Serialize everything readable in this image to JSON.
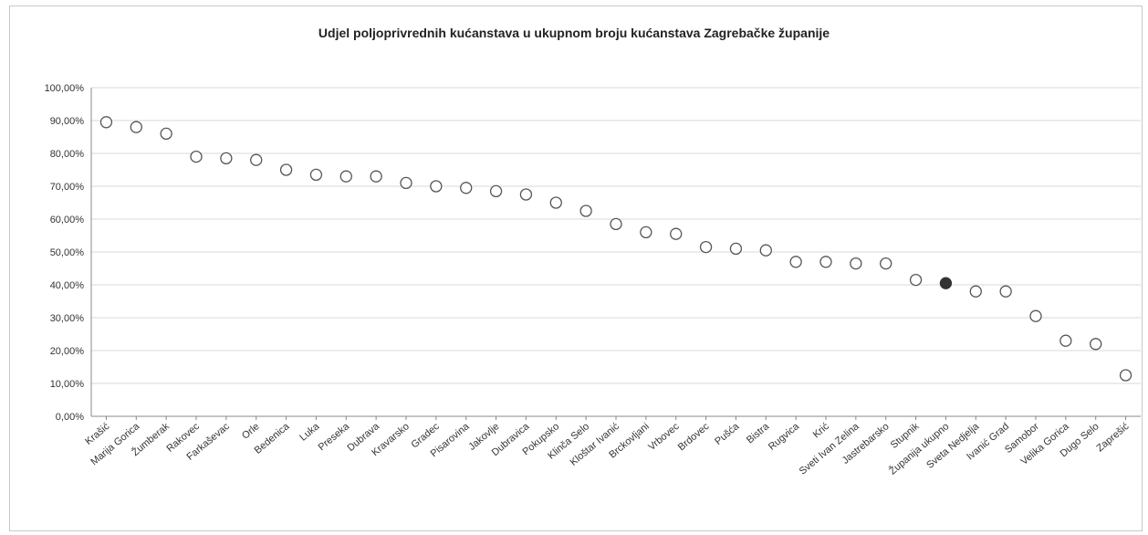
{
  "chart_data": {
    "type": "scatter",
    "title": "Udjel poljoprivrednih kućanstava u ukupnom broju kućanstava Zagrebačke županije",
    "xlabel": "",
    "ylabel": "",
    "ylim": [
      0,
      100
    ],
    "y_ticks": [
      "0,00%",
      "10,00%",
      "20,00%",
      "30,00%",
      "40,00%",
      "50,00%",
      "60,00%",
      "70,00%",
      "80,00%",
      "90,00%",
      "100,00%"
    ],
    "grid": "horizontal",
    "legend": "none",
    "marker_color": "#555555",
    "highlight_color": "#333333",
    "categories": [
      "Krašić",
      "Marija Gorica",
      "Žumberak",
      "Rakovec",
      "Farkaševac",
      "Orle",
      "Bedenica",
      "Luka",
      "Preseka",
      "Dubrava",
      "Kravarsko",
      "Gradec",
      "Pisarovina",
      "Jakovlje",
      "Dubravica",
      "Pokupsko",
      "Klinča Selo",
      "Kloštar Ivanić",
      "Brckovljani",
      "Vrbovec",
      "Brdovec",
      "Pušća",
      "Bistra",
      "Rugvica",
      "Krić",
      "Sveti Ivan Zelina",
      "Jastrebarsko",
      "Stupnik",
      "Županija ukupno",
      "Sveta Nedjelja",
      "Ivanić Grad",
      "Samobor",
      "Velika Gorica",
      "Dugo Selo",
      "Zaprešić"
    ],
    "values": [
      89.5,
      88,
      86,
      79,
      78.5,
      78,
      75,
      73.5,
      73,
      73,
      71,
      70,
      69.5,
      68.5,
      67.5,
      65,
      62.5,
      58.5,
      56,
      55.5,
      51.5,
      51,
      50.5,
      47,
      47,
      46.5,
      46.5,
      41.5,
      40.5,
      38,
      38,
      30.5,
      23,
      22,
      12.5
    ],
    "highlight_index": 28
  }
}
